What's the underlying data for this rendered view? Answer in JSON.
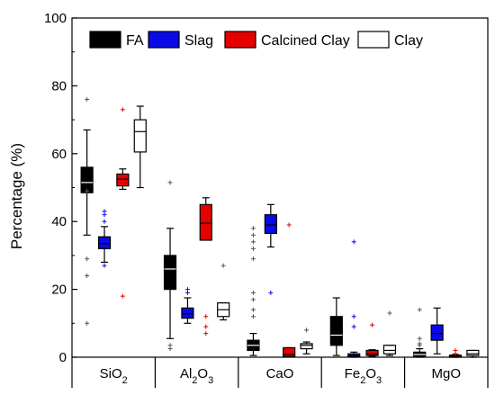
{
  "chart_data": {
    "type": "box",
    "title": "",
    "xlabel": "",
    "ylabel": "Percentage (%)",
    "ylim": [
      0,
      100
    ],
    "yticks": [
      0,
      20,
      40,
      60,
      80,
      100
    ],
    "grid": false,
    "legend_position": "top",
    "categories": [
      {
        "base": "SiO",
        "sub": "2"
      },
      {
        "base": "Al",
        "sub": "2",
        "base2": "O",
        "sub2": "3"
      },
      {
        "base": "CaO"
      },
      {
        "base": "Fe",
        "sub": "2",
        "base2": "O",
        "sub2": "3"
      },
      {
        "base": "MgO"
      }
    ],
    "series": [
      {
        "name": "FA",
        "color": "#000000",
        "boxes": [
          {
            "q1": 48.5,
            "median": 51.5,
            "q3": 56,
            "whisker_low": 36,
            "whisker_high": 67,
            "outliers": [
              76,
              10,
              24,
              29,
              49
            ]
          },
          {
            "q1": 20,
            "median": 26,
            "q3": 30,
            "whisker_low": 5.5,
            "whisker_high": 38,
            "outliers": [
              51.5,
              3.5,
              2.5
            ]
          },
          {
            "q1": 2,
            "median": 3.5,
            "q3": 5,
            "whisker_low": 0.5,
            "whisker_high": 7,
            "outliers": [
              38,
              36,
              34,
              32,
              29,
              19,
              17,
              14,
              12
            ]
          },
          {
            "q1": 3.5,
            "median": 6.5,
            "q3": 12,
            "whisker_low": 0.5,
            "whisker_high": 17.5,
            "outliers": []
          },
          {
            "q1": 0.2,
            "median": 0.8,
            "q3": 1.5,
            "whisker_low": 0,
            "whisker_high": 2.5,
            "outliers": [
              14,
              5.5,
              4,
              3.5
            ]
          }
        ]
      },
      {
        "name": "Slag",
        "color": "#0a0ae6",
        "boxes": [
          {
            "q1": 32,
            "median": 33.5,
            "q3": 35.5,
            "whisker_low": 28,
            "whisker_high": 38.5,
            "outliers": [
              43,
              42,
              40,
              27
            ]
          },
          {
            "q1": 11.5,
            "median": 12.8,
            "q3": 14.5,
            "whisker_low": 10,
            "whisker_high": 17.5,
            "outliers": [
              20,
              19
            ]
          },
          {
            "q1": 36.5,
            "median": 39,
            "q3": 42,
            "whisker_low": 32.5,
            "whisker_high": 45,
            "outliers": [
              19
            ]
          },
          {
            "q1": 0.2,
            "median": 0.5,
            "q3": 1,
            "whisker_low": 0,
            "whisker_high": 1.5,
            "outliers": [
              34,
              12,
              9
            ]
          },
          {
            "q1": 5,
            "median": 7,
            "q3": 9.5,
            "whisker_low": 1,
            "whisker_high": 14.5,
            "outliers": []
          }
        ]
      },
      {
        "name": "Calcined Clay",
        "color": "#e60000",
        "boxes": [
          {
            "q1": 50.5,
            "median": 52.5,
            "q3": 54,
            "whisker_low": 49.5,
            "whisker_high": 55.5,
            "outliers": [
              73,
              18
            ]
          },
          {
            "q1": 34.5,
            "median": 39.5,
            "q3": 45,
            "whisker_low": 34.5,
            "whisker_high": 47,
            "outliers": [
              12,
              9,
              7
            ]
          },
          {
            "q1": 0.2,
            "median": 0.8,
            "q3": 2.8,
            "whisker_low": 0.2,
            "whisker_high": 2.8,
            "outliers": [
              39
            ]
          },
          {
            "q1": 0.5,
            "median": 1,
            "q3": 2,
            "whisker_low": 0.3,
            "whisker_high": 2.2,
            "outliers": [
              9.5
            ]
          },
          {
            "q1": 0,
            "median": 0.3,
            "q3": 0.6,
            "whisker_low": 0,
            "whisker_high": 0.8,
            "outliers": [
              2,
              1
            ]
          }
        ]
      },
      {
        "name": "Clay",
        "color": "#ffffff",
        "boxes": [
          {
            "q1": 60.5,
            "median": 66.5,
            "q3": 70,
            "whisker_low": 50,
            "whisker_high": 74,
            "outliers": []
          },
          {
            "q1": 12,
            "median": 14,
            "q3": 16,
            "whisker_low": 11,
            "whisker_high": 16,
            "outliers": [
              27
            ]
          },
          {
            "q1": 2.5,
            "median": 3.5,
            "q3": 4,
            "whisker_low": 1,
            "whisker_high": 4.5,
            "outliers": [
              8
            ]
          },
          {
            "q1": 1,
            "median": 2,
            "q3": 3.5,
            "whisker_low": 0.5,
            "whisker_high": 3.5,
            "outliers": [
              13
            ]
          },
          {
            "q1": 0.5,
            "median": 1,
            "q3": 2,
            "whisker_low": 0,
            "whisker_high": 2,
            "outliers": []
          }
        ]
      }
    ]
  }
}
